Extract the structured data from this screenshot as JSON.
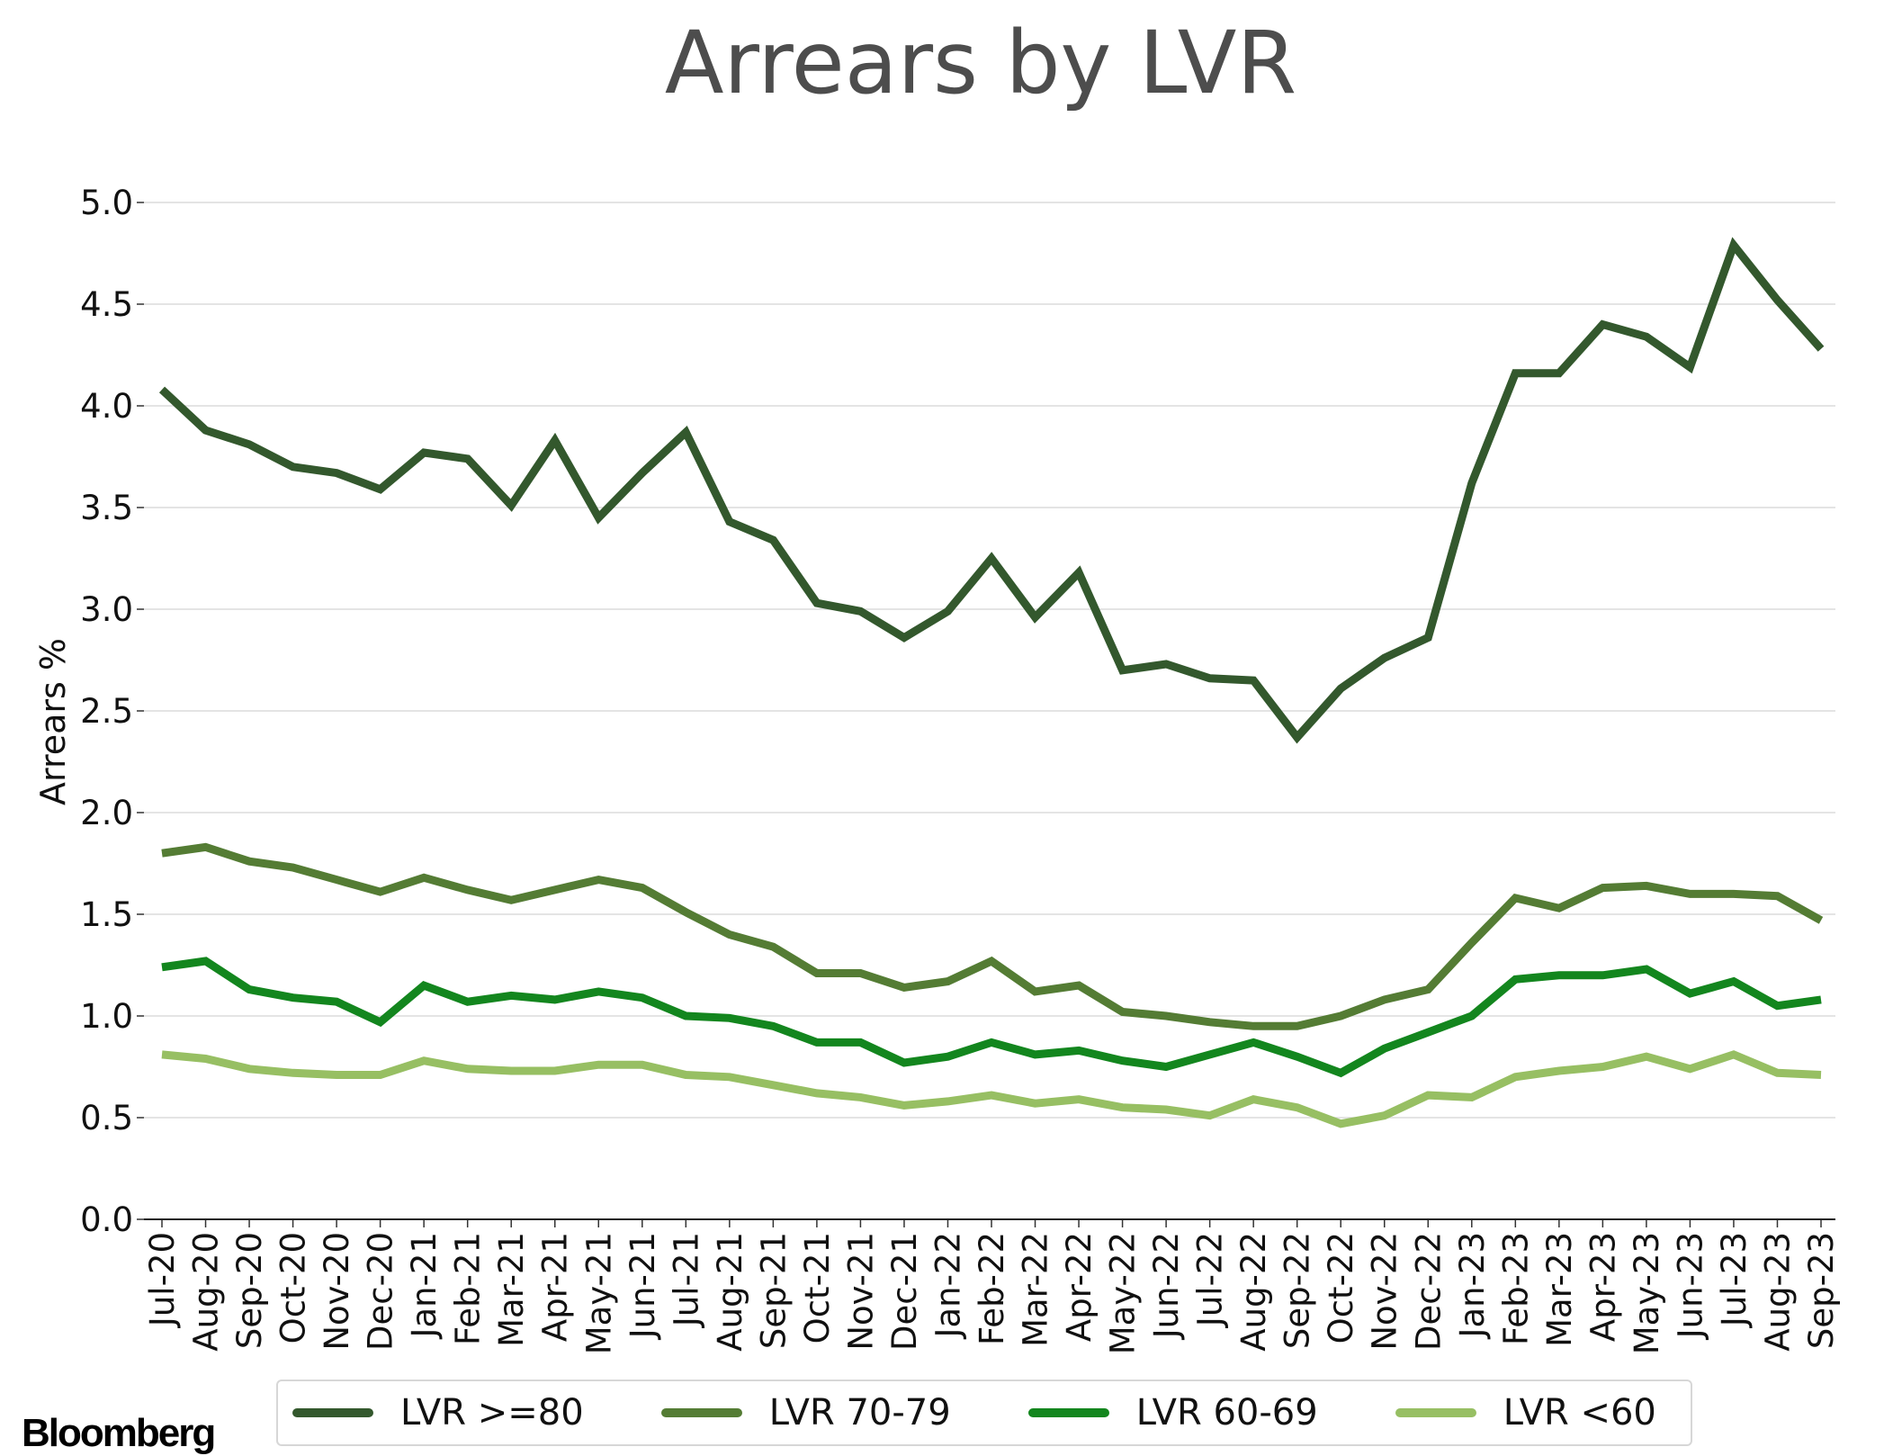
{
  "chart_data": {
    "type": "line",
    "title": "Arrears by LVR",
    "ylabel": "Arrears %",
    "xlabel": "",
    "ylim": [
      0,
      5
    ],
    "yticks": [
      "0.0",
      "0.5",
      "1.0",
      "1.5",
      "2.0",
      "2.5",
      "3.0",
      "3.5",
      "4.0",
      "4.5",
      "5.0"
    ],
    "grid": "horizontal",
    "legend_position": "bottom",
    "categories": [
      "Jul-20",
      "Aug-20",
      "Sep-20",
      "Oct-20",
      "Nov-20",
      "Dec-20",
      "Jan-21",
      "Feb-21",
      "Mar-21",
      "Apr-21",
      "May-21",
      "Jun-21",
      "Jul-21",
      "Aug-21",
      "Sep-21",
      "Oct-21",
      "Nov-21",
      "Dec-21",
      "Jan-22",
      "Feb-22",
      "Mar-22",
      "Apr-22",
      "May-22",
      "Jun-22",
      "Jul-22",
      "Aug-22",
      "Sep-22",
      "Oct-22",
      "Nov-22",
      "Dec-22",
      "Jan-23",
      "Feb-23",
      "Mar-23",
      "Apr-23",
      "May-23",
      "Jun-23",
      "Jul-23",
      "Aug-23",
      "Sep-23"
    ],
    "series": [
      {
        "name": "LVR >=80",
        "color": "#33582d",
        "values": [
          4.08,
          3.88,
          3.81,
          3.7,
          3.67,
          3.59,
          3.77,
          3.74,
          3.51,
          3.83,
          3.45,
          3.67,
          3.87,
          3.43,
          3.34,
          3.03,
          2.99,
          2.86,
          2.99,
          3.25,
          2.96,
          3.18,
          2.7,
          2.73,
          2.66,
          2.65,
          2.37,
          2.61,
          2.76,
          2.86,
          3.62,
          4.16,
          4.16,
          4.4,
          4.34,
          4.19,
          4.79,
          4.52,
          4.28
        ]
      },
      {
        "name": "LVR 70-79",
        "color": "#547c34",
        "values": [
          1.8,
          1.83,
          1.76,
          1.73,
          1.67,
          1.61,
          1.68,
          1.62,
          1.57,
          1.62,
          1.67,
          1.63,
          1.51,
          1.4,
          1.34,
          1.21,
          1.21,
          1.14,
          1.17,
          1.27,
          1.12,
          1.15,
          1.02,
          1.0,
          0.97,
          0.95,
          0.95,
          1.0,
          1.08,
          1.13,
          1.36,
          1.58,
          1.53,
          1.63,
          1.64,
          1.6,
          1.6,
          1.59,
          1.47
        ]
      },
      {
        "name": "LVR 60-69",
        "color": "#13861e",
        "values": [
          1.24,
          1.27,
          1.13,
          1.09,
          1.07,
          0.97,
          1.15,
          1.07,
          1.1,
          1.08,
          1.12,
          1.09,
          1.0,
          0.99,
          0.95,
          0.87,
          0.87,
          0.77,
          0.8,
          0.87,
          0.81,
          0.83,
          0.78,
          0.75,
          0.81,
          0.87,
          0.8,
          0.72,
          0.84,
          0.92,
          1.0,
          1.18,
          1.2,
          1.2,
          1.23,
          1.11,
          1.17,
          1.05,
          1.08
        ]
      },
      {
        "name": "LVR <60",
        "color": "#97bf63",
        "values": [
          0.81,
          0.79,
          0.74,
          0.72,
          0.71,
          0.71,
          0.78,
          0.74,
          0.73,
          0.73,
          0.76,
          0.76,
          0.71,
          0.7,
          0.66,
          0.62,
          0.6,
          0.56,
          0.58,
          0.61,
          0.57,
          0.59,
          0.55,
          0.54,
          0.51,
          0.59,
          0.55,
          0.47,
          0.51,
          0.61,
          0.6,
          0.7,
          0.73,
          0.75,
          0.8,
          0.74,
          0.81,
          0.72,
          0.71
        ]
      }
    ]
  },
  "brand": "Bloomberg"
}
